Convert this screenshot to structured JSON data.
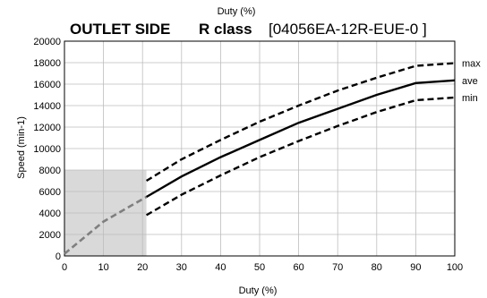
{
  "chart_data": {
    "type": "line",
    "top_label": "Duty (%)",
    "title_side": "OUTLET SIDE",
    "title_class": "R class",
    "title_model": "[04056EA-12R-EUE-0 ]",
    "xlabel": "Duty (%)",
    "ylabel": "Speed (min-1)",
    "xlim": [
      0,
      100
    ],
    "ylim": [
      0,
      20000
    ],
    "xticks": [
      "0",
      "10",
      "20",
      "30",
      "40",
      "50",
      "60",
      "70",
      "80",
      "90",
      "100"
    ],
    "yticks": [
      "0",
      "2000",
      "4000",
      "6000",
      "8000",
      "10000",
      "12000",
      "14000",
      "16000",
      "18000",
      "20000"
    ],
    "grid": true,
    "shaded_region": {
      "x": [
        0,
        21
      ],
      "y": [
        0,
        8000
      ],
      "color": "#d9d9d9"
    },
    "low_duty_segment": {
      "style": "dashed",
      "color": "#7f7f7f",
      "x": [
        0,
        10,
        21
      ],
      "y": [
        200,
        3200,
        5500
      ]
    },
    "series": [
      {
        "name": "max",
        "style": "dashed",
        "color": "#000000",
        "x": [
          21,
          30,
          40,
          50,
          60,
          70,
          80,
          90,
          100
        ],
        "y": [
          7000,
          9000,
          10800,
          12500,
          14000,
          15400,
          16600,
          17700,
          17950
        ]
      },
      {
        "name": "ave",
        "style": "solid",
        "color": "#000000",
        "x": [
          21,
          30,
          40,
          50,
          60,
          70,
          80,
          90,
          100
        ],
        "y": [
          5500,
          7400,
          9200,
          10800,
          12400,
          13700,
          15000,
          16100,
          16350
        ]
      },
      {
        "name": "min",
        "style": "dashed",
        "color": "#000000",
        "x": [
          21,
          30,
          40,
          50,
          60,
          70,
          80,
          90,
          100
        ],
        "y": [
          3800,
          5700,
          7500,
          9200,
          10700,
          12100,
          13400,
          14500,
          14750
        ]
      }
    ]
  }
}
